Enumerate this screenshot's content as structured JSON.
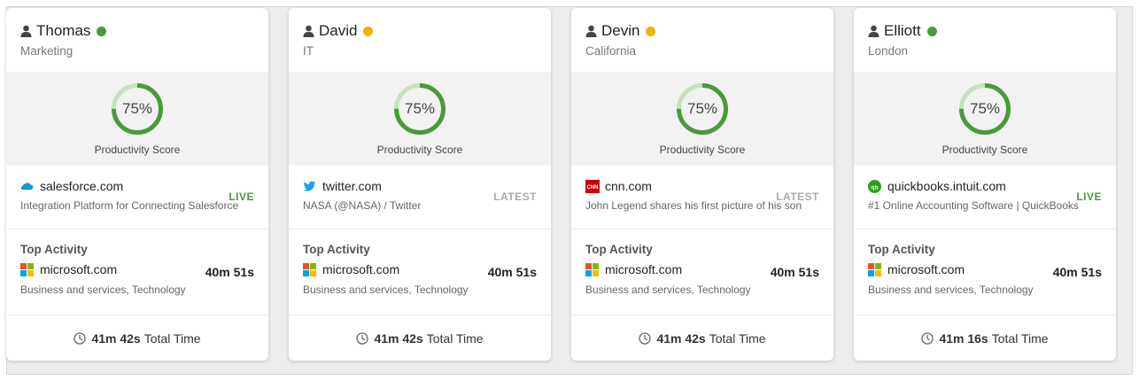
{
  "colors": {
    "online": "#4a9a3b",
    "away": "#f0b400",
    "ring": "#4a9a3b",
    "ring_track": "#c8dfc2"
  },
  "cards": [
    {
      "name": "Thomas",
      "status": "online",
      "subtitle": "Marketing",
      "score": {
        "value": "75%",
        "fraction": 0.75,
        "label": "Productivity Score"
      },
      "site": {
        "icon": "salesforce-icon",
        "name": "salesforce.com",
        "desc": "Integration Platform for Connecting Salesforce",
        "badge": "LIVE"
      },
      "activity": {
        "title": "Top Activity",
        "icon": "microsoft-icon",
        "site": "microsoft.com",
        "time": "40m 51s",
        "desc": "Business and services, Technology"
      },
      "total": {
        "value": "41m 42s",
        "label": "Total Time"
      }
    },
    {
      "name": "David",
      "status": "away",
      "subtitle": "IT",
      "score": {
        "value": "75%",
        "fraction": 0.75,
        "label": "Productivity Score"
      },
      "site": {
        "icon": "twitter-icon",
        "name": "twitter.com",
        "desc": "NASA (@NASA) / Twitter",
        "badge": "LATEST"
      },
      "activity": {
        "title": "Top Activity",
        "icon": "microsoft-icon",
        "site": "microsoft.com",
        "time": "40m 51s",
        "desc": "Business and services, Technology"
      },
      "total": {
        "value": "41m 42s",
        "label": "Total Time"
      }
    },
    {
      "name": "Devin",
      "status": "away",
      "subtitle": "California",
      "score": {
        "value": "75%",
        "fraction": 0.75,
        "label": "Productivity Score"
      },
      "site": {
        "icon": "cnn-icon",
        "name": "cnn.com",
        "desc": "John Legend shares his first picture of his son",
        "badge": "LATEST"
      },
      "activity": {
        "title": "Top Activity",
        "icon": "microsoft-icon",
        "site": "microsoft.com",
        "time": "40m 51s",
        "desc": "Business and services, Technology"
      },
      "total": {
        "value": "41m 42s",
        "label": "Total Time"
      }
    },
    {
      "name": "Elliott",
      "status": "online",
      "subtitle": "London",
      "score": {
        "value": "75%",
        "fraction": 0.75,
        "label": "Productivity Score"
      },
      "site": {
        "icon": "quickbooks-icon",
        "name": "quickbooks.intuit.com",
        "desc": "#1 Online Accounting Software | QuickBooks",
        "badge": "LIVE"
      },
      "activity": {
        "title": "Top Activity",
        "icon": "microsoft-icon",
        "site": "microsoft.com",
        "time": "40m 51s",
        "desc": "Business and services, Technology"
      },
      "total": {
        "value": "41m 16s",
        "label": "Total Time"
      }
    }
  ]
}
